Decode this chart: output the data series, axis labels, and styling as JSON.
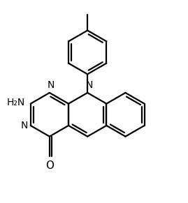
{
  "background_color": "#ffffff",
  "line_color": "#000000",
  "line_width": 1.6,
  "figsize": [
    2.69,
    2.91
  ],
  "dpi": 100,
  "xlim": [
    -4.2,
    4.2
  ],
  "ylim": [
    -4.5,
    4.5
  ]
}
